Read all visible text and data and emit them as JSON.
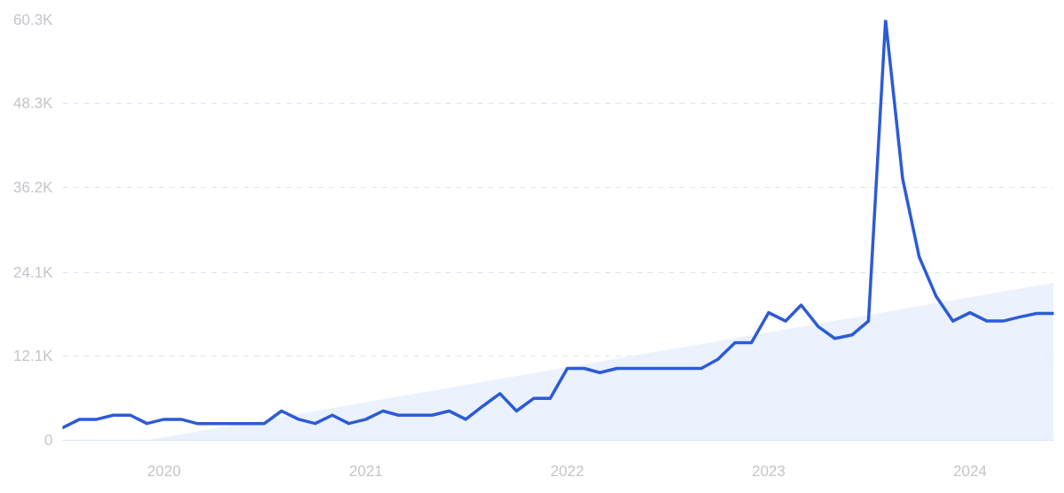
{
  "chart_data": {
    "type": "line",
    "x": [
      "2019-07",
      "2019-08",
      "2019-09",
      "2019-10",
      "2019-11",
      "2019-12",
      "2020-01",
      "2020-02",
      "2020-03",
      "2020-04",
      "2020-05",
      "2020-06",
      "2020-07",
      "2020-08",
      "2020-09",
      "2020-10",
      "2020-11",
      "2020-12",
      "2021-01",
      "2021-02",
      "2021-03",
      "2021-04",
      "2021-05",
      "2021-06",
      "2021-07",
      "2021-08",
      "2021-09",
      "2021-10",
      "2021-11",
      "2021-12",
      "2022-01",
      "2022-02",
      "2022-03",
      "2022-04",
      "2022-05",
      "2022-06",
      "2022-07",
      "2022-08",
      "2022-09",
      "2022-10",
      "2022-11",
      "2022-12",
      "2023-01",
      "2023-02",
      "2023-03",
      "2023-04",
      "2023-05",
      "2023-06",
      "2023-07",
      "2023-08",
      "2023-09",
      "2023-10",
      "2023-11",
      "2023-12",
      "2024-01",
      "2024-02",
      "2024-03",
      "2024-04",
      "2024-05",
      "2024-06"
    ],
    "series": [
      {
        "type": "area",
        "color": "#e6effc",
        "x": [
          "2019-12",
          "2024-06"
        ],
        "values": [
          0,
          22600
        ]
      },
      {
        "color": "#2d5bd6",
        "values": [
          1800,
          3000,
          3000,
          3600,
          3600,
          2400,
          3000,
          3000,
          2400,
          2400,
          2400,
          2400,
          2400,
          4200,
          3000,
          2400,
          3600,
          2400,
          3000,
          4200,
          3600,
          3600,
          3600,
          4200,
          3000,
          4900,
          6700,
          4200,
          6000,
          6000,
          10300,
          10300,
          9700,
          10300,
          10300,
          10300,
          10300,
          10300,
          10300,
          11600,
          14000,
          14000,
          18300,
          17100,
          19400,
          16300,
          14600,
          15100,
          17100,
          60300,
          37500,
          26300,
          20600,
          17100,
          18300,
          17100,
          17100,
          17700,
          18200,
          18200
        ]
      }
    ],
    "xlim": [
      "2019-07",
      "2024-06"
    ],
    "xticks": [
      "2020",
      "2021",
      "2022",
      "2023",
      "2024"
    ],
    "ylim": [
      0,
      60300
    ],
    "yticks": [
      0,
      {
        "value": 12100,
        "label": "12.1K"
      },
      {
        "value": 24100,
        "label": "24.1K"
      },
      {
        "value": 36200,
        "label": "36.2K"
      },
      {
        "value": 48300,
        "label": "48.3K"
      },
      {
        "value": 60300,
        "label": "60.3K"
      }
    ],
    "grid": "y",
    "line_style": "solid",
    "marker": "none"
  }
}
